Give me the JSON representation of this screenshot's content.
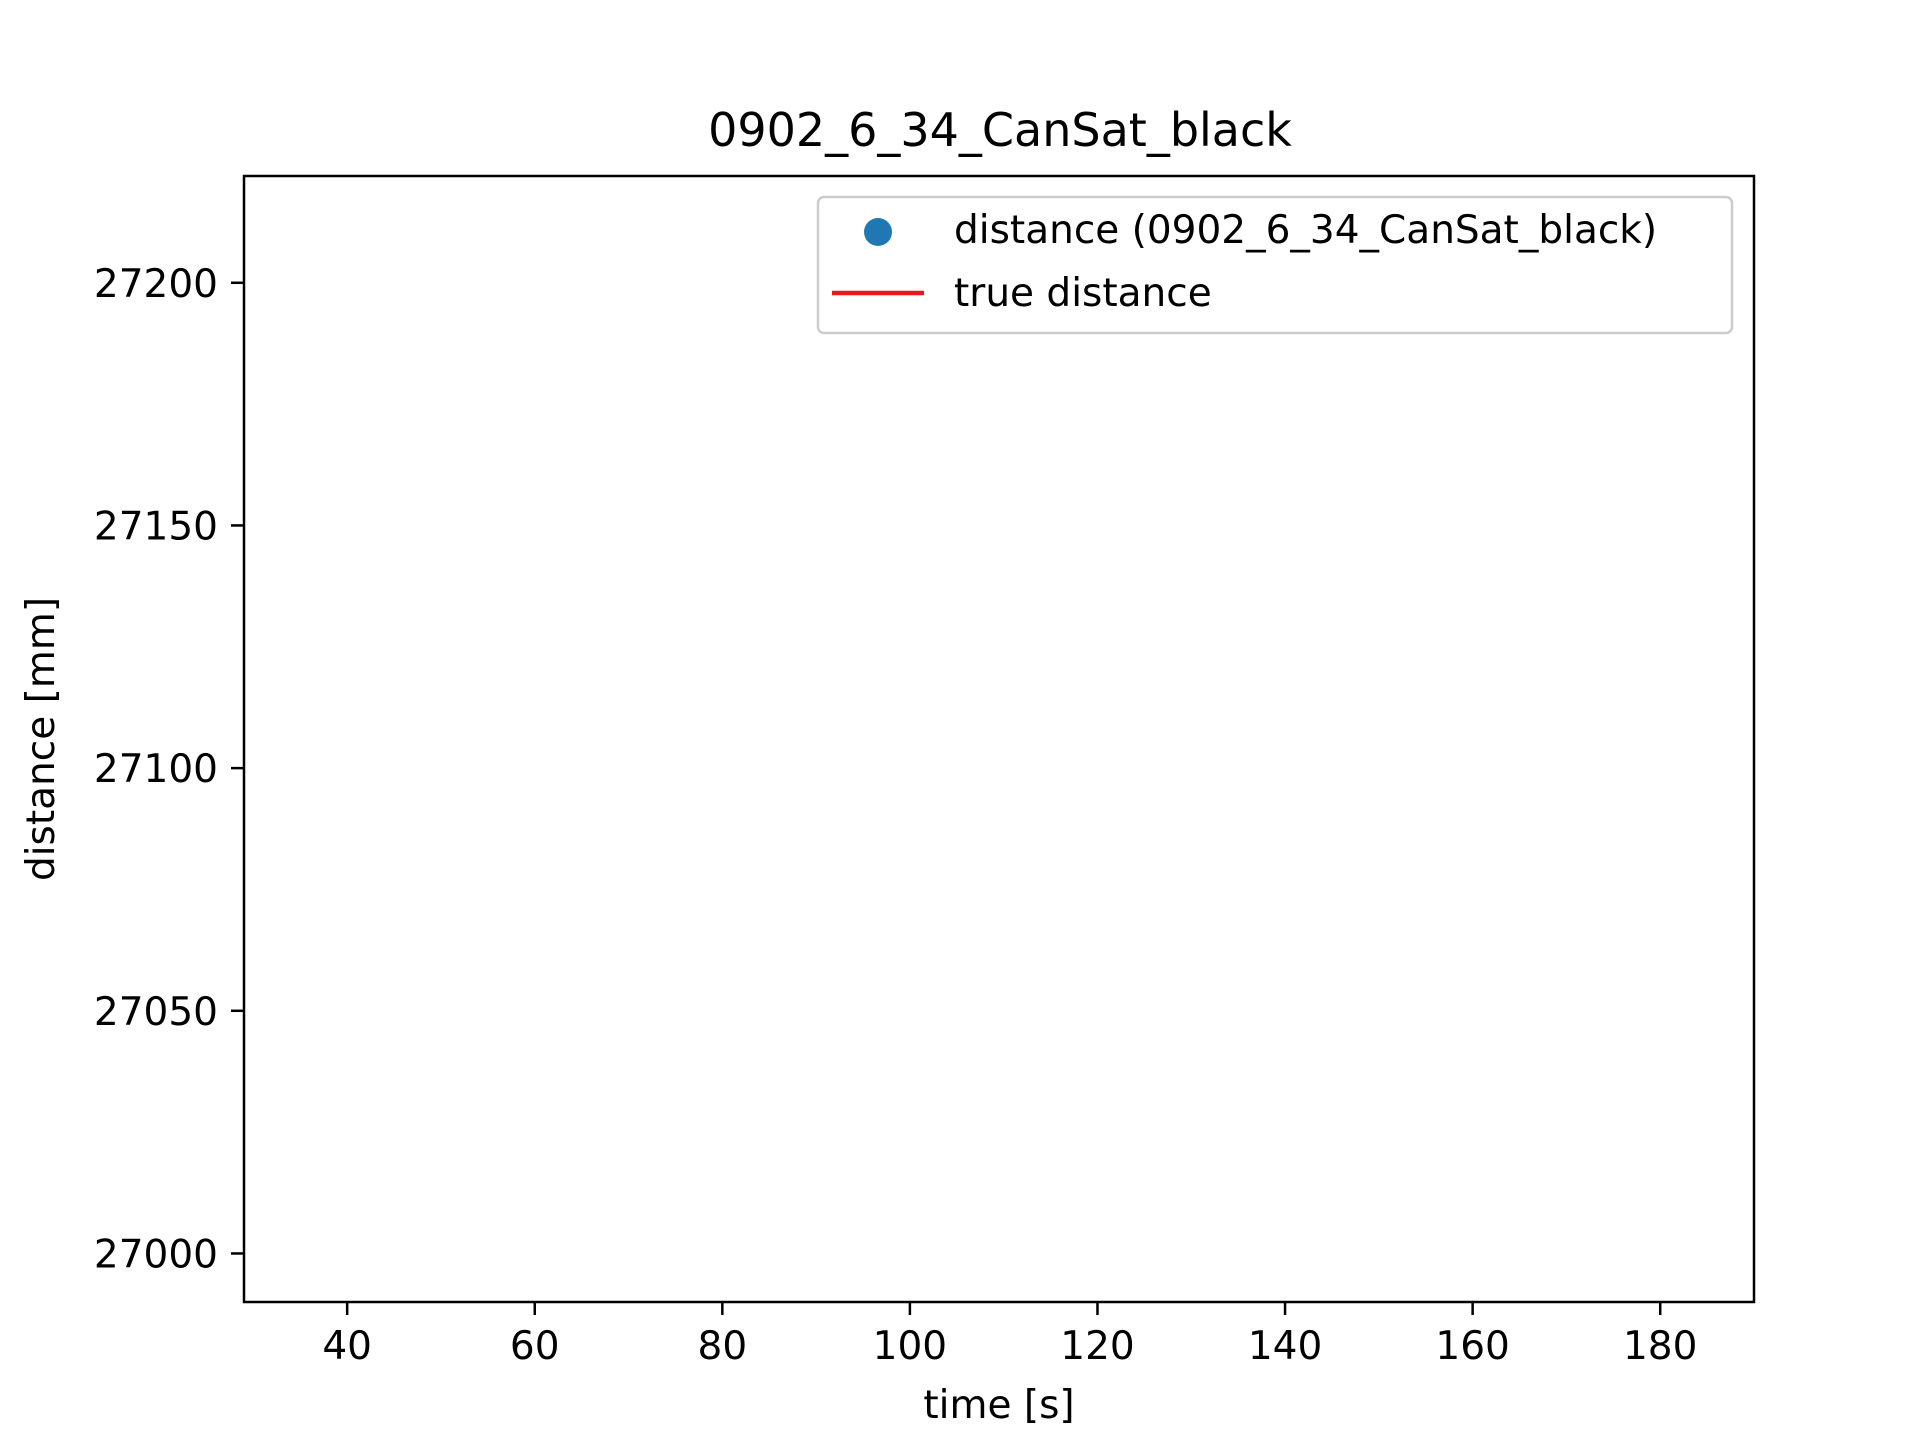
{
  "chart_data": {
    "type": "scatter",
    "title": "0902_6_34_CanSat_black",
    "xlabel": "time [s]",
    "ylabel": "distance [mm]",
    "xlim": [
      29,
      190
    ],
    "ylim": [
      26990,
      27222
    ],
    "x_ticks": [
      "40",
      "60",
      "80",
      "100",
      "120",
      "140",
      "160",
      "180"
    ],
    "y_ticks": [
      "27000",
      "27050",
      "27100",
      "27150",
      "27200"
    ],
    "grid": false,
    "legend_position": "upper-right",
    "series": [
      {
        "name": "distance (0902_6_34_CanSat_black)",
        "type": "scatter",
        "color": "#1f77b4",
        "x": [],
        "y": []
      },
      {
        "name": "true distance",
        "type": "line",
        "color": "#e41a1c",
        "x": [],
        "y": []
      }
    ]
  }
}
